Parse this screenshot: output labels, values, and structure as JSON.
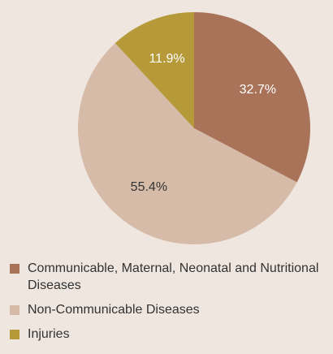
{
  "chart_data": {
    "type": "pie",
    "categories": [
      "Communicable, Maternal, Neonatal and Nutritional Diseases",
      "Non-Communicable Diseases",
      "Injuries"
    ],
    "values": [
      32.7,
      55.4,
      11.9
    ],
    "value_labels": [
      "32.7%",
      "55.4%",
      "11.9%"
    ],
    "colors": [
      "#a97359",
      "#d6bba8",
      "#b69a3a"
    ]
  }
}
